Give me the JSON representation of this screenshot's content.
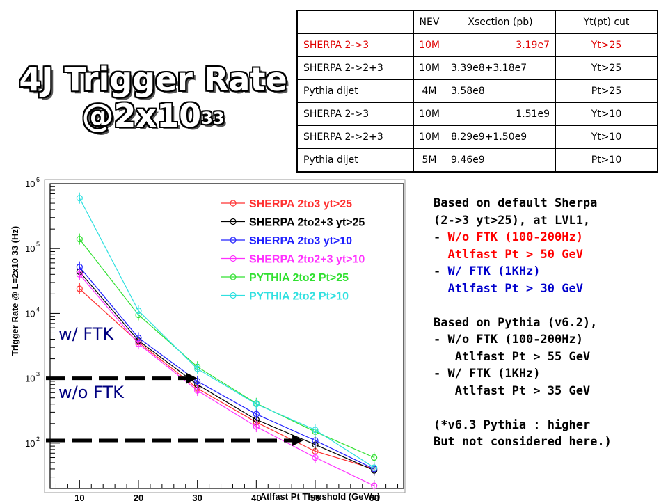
{
  "title": {
    "line1": "4J Trigger Rate",
    "line2_base": "@2x10",
    "line2_exp": "33"
  },
  "table": {
    "headers": [
      "",
      "NEV",
      "Xsection (pb)",
      "Yt(pt) cut"
    ],
    "rows": [
      {
        "gen": "SHERPA 2->3",
        "nev": "10M",
        "xsec": "3.19e7",
        "cut": "Yt>25",
        "highlight": true
      },
      {
        "gen": "SHERPA 2->2+3",
        "nev": "10M",
        "xsec": "3.39e8+3.18e7",
        "cut": "Yt>25"
      },
      {
        "gen": "Pythia dijet",
        "nev": "4M",
        "xsec": "3.58e8",
        "cut": "Pt>25"
      },
      {
        "gen": "SHERPA 2->3",
        "nev": "10M",
        "xsec": "1.51e9",
        "cut": "Yt>10"
      },
      {
        "gen": "SHERPA 2->2+3",
        "nev": "10M",
        "xsec": "8.29e9+1.50e9",
        "cut": "Yt>10"
      },
      {
        "gen": "Pythia dijet",
        "nev": "5M",
        "xsec": "9.46e9",
        "cut": "Pt>10"
      }
    ]
  },
  "notes": [
    {
      "text": "Based on default Sherpa",
      "color": "black"
    },
    {
      "text": "(2->3 yt>25), at LVL1,",
      "color": "black"
    },
    {
      "text": "- ",
      "color": "black",
      "rest": "W/o FTK (100-200Hz)",
      "rest_color": "red"
    },
    {
      "text": "  Atlfast Pt > 50 GeV",
      "color": "red"
    },
    {
      "text": "- ",
      "color": "black",
      "rest": "W/ FTK (1KHz)",
      "rest_color": "blue"
    },
    {
      "text": "  Atlfast Pt > 30 GeV",
      "color": "blue"
    },
    {
      "text": "",
      "color": "black"
    },
    {
      "text": "Based on Pythia (v6.2),",
      "color": "black"
    },
    {
      "text": "- W/o FTK (100-200Hz)",
      "color": "black"
    },
    {
      "text": "   Atlfast Pt > 55 GeV",
      "color": "black"
    },
    {
      "text": "- W/ FTK (1KHz)",
      "color": "black"
    },
    {
      "text": "   Atlfast Pt > 35 GeV",
      "color": "black"
    },
    {
      "text": "",
      "color": "black"
    },
    {
      "text": "(*v6.3 Pythia : higher",
      "color": "black"
    },
    {
      "text": "But not considered here.)",
      "color": "black"
    }
  ],
  "ftk_labels": {
    "with": "w/ FTK",
    "without": "w/o FTK"
  },
  "thresholds": {
    "with_ftk_rate": 1000,
    "without_ftk_rate": 110,
    "with_ftk_pt": 30,
    "without_ftk_pt": 48
  },
  "chart_data": {
    "type": "line",
    "xlabel": "Atlfast Pt Threshold (GeV/c)",
    "ylabel": "Trigger Rate @ L=2x10 33 (Hz)",
    "xlim": [
      5,
      65
    ],
    "ylim": [
      20,
      1000000
    ],
    "yscale": "log",
    "xticks": [
      10,
      20,
      30,
      40,
      50,
      60
    ],
    "yticks": [
      {
        "value": 100,
        "label": "10",
        "exp": "2"
      },
      {
        "value": 1000,
        "label": "10",
        "exp": "3"
      },
      {
        "value": 10000,
        "label": "10",
        "exp": "4"
      },
      {
        "value": 100000,
        "label": "10",
        "exp": "5"
      },
      {
        "value": 1000000,
        "label": "10",
        "exp": "6"
      }
    ],
    "grid": false,
    "legend_position": "top-right",
    "x": [
      10,
      20,
      30,
      40,
      50,
      60
    ],
    "series": [
      {
        "name": "SHERPA 2to3 yt>25",
        "color": "#ff3030",
        "values": [
          24000,
          3600,
          700,
          210,
          75,
          40
        ]
      },
      {
        "name": "SHERPA 2to2+3 yt>25",
        "color": "#000000",
        "values": [
          44000,
          3800,
          800,
          230,
          95,
          38
        ]
      },
      {
        "name": "SHERPA 2to3 yt>10",
        "color": "#2020ff",
        "values": [
          52000,
          4200,
          900,
          280,
          110,
          40
        ]
      },
      {
        "name": "SHERPA 2to2+3 yt>10",
        "color": "#ff30ff",
        "values": [
          40000,
          3400,
          650,
          180,
          60,
          22
        ]
      },
      {
        "name": "PYTHIA 2to2 Pt>25",
        "color": "#30e030",
        "values": [
          140000,
          9500,
          1500,
          410,
          150,
          60
        ]
      },
      {
        "name": "PYTHIA 2to2 Pt>10",
        "color": "#30e0e0",
        "values": [
          600000,
          11000,
          1400,
          400,
          160,
          42
        ]
      }
    ]
  }
}
